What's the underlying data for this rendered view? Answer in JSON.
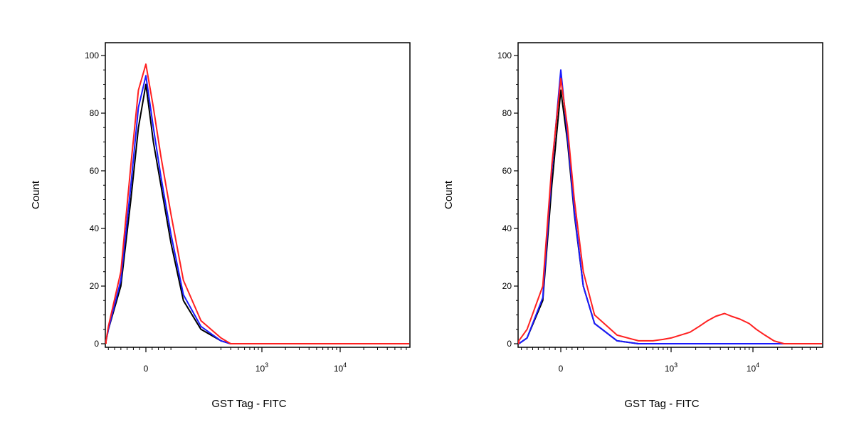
{
  "chart_data": [
    {
      "type": "line",
      "xlabel": "GST Tag - FITC",
      "ylabel": "Count",
      "ylim": [
        0,
        100
      ],
      "x_scale": "biexponential",
      "y_ticks": [
        "0",
        "20",
        "40",
        "60",
        "80",
        "100"
      ],
      "x_ticks": [
        {
          "base": "0",
          "exp": ""
        },
        {
          "base": "10",
          "exp": "3"
        },
        {
          "base": "10",
          "exp": "4"
        }
      ],
      "series": [
        {
          "color": "#000000",
          "x": [
            -300,
            -200,
            -150,
            -100,
            -60,
            -30,
            0,
            30,
            60,
            100,
            150,
            220,
            300,
            400,
            600
          ],
          "y": [
            0,
            1,
            5,
            20,
            50,
            75,
            90,
            70,
            55,
            35,
            15,
            5,
            1,
            0,
            0
          ]
        },
        {
          "color": "#1a1aff",
          "x": [
            -300,
            -200,
            -150,
            -100,
            -60,
            -30,
            0,
            30,
            60,
            100,
            150,
            220,
            300,
            400,
            600
          ],
          "y": [
            0,
            1,
            5,
            22,
            55,
            82,
            93,
            75,
            58,
            38,
            17,
            6,
            1,
            0,
            0
          ]
        },
        {
          "color": "#ff2020",
          "x": [
            -300,
            -200,
            -150,
            -100,
            -60,
            -30,
            0,
            30,
            60,
            100,
            150,
            220,
            300,
            400,
            600
          ],
          "y": [
            0,
            1,
            6,
            25,
            62,
            88,
            97,
            82,
            65,
            45,
            22,
            8,
            2,
            0,
            0
          ]
        }
      ]
    },
    {
      "type": "line",
      "xlabel": "GST Tag - FITC",
      "ylabel": "Count",
      "ylim": [
        0,
        100
      ],
      "x_scale": "biexponential",
      "y_ticks": [
        "0",
        "20",
        "40",
        "60",
        "80",
        "100"
      ],
      "x_ticks": [
        {
          "base": "0",
          "exp": ""
        },
        {
          "base": "10",
          "exp": "3"
        },
        {
          "base": "10",
          "exp": "4"
        }
      ],
      "series": [
        {
          "color": "#000000",
          "x": [
            -300,
            -150,
            -80,
            -40,
            0,
            30,
            60,
            100,
            150,
            250,
            400,
            800
          ],
          "y": [
            0,
            2,
            15,
            55,
            88,
            70,
            45,
            20,
            7,
            1,
            0,
            0
          ]
        },
        {
          "color": "#1a1aff",
          "x": [
            -300,
            -150,
            -80,
            -40,
            0,
            30,
            60,
            100,
            150,
            250,
            400,
            800
          ],
          "y": [
            0,
            2,
            16,
            60,
            95,
            72,
            46,
            20,
            7,
            1,
            0,
            0
          ]
        },
        {
          "color": "#ff2020",
          "x": [
            -500,
            -300,
            -150,
            -80,
            -40,
            0,
            30,
            60,
            100,
            150,
            250,
            400,
            600,
            800,
            1000,
            1300,
            1700,
            2200,
            2800,
            3500,
            4500,
            5500,
            7000,
            9000,
            11000,
            14000,
            18000,
            24000,
            30000
          ],
          "y": [
            0,
            1,
            5,
            20,
            62,
            92,
            75,
            50,
            25,
            10,
            3,
            1,
            1,
            1.5,
            2,
            3,
            4,
            6,
            8,
            9.5,
            10.5,
            9.5,
            8.5,
            7,
            5,
            3,
            1,
            0,
            0
          ]
        }
      ]
    }
  ]
}
